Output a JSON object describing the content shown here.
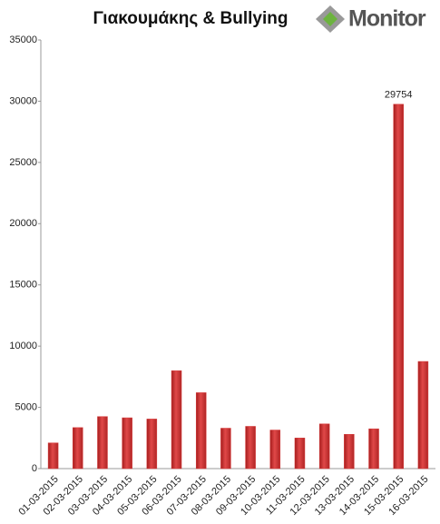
{
  "logo": "Monitor",
  "chart_data": {
    "type": "bar",
    "title": "Γιακουμάκης & Bullying",
    "categories": [
      "01-03-2015",
      "02-03-2015",
      "03-03-2015",
      "04-03-2015",
      "05-03-2015",
      "06-03-2015",
      "07-03-2015",
      "08-03-2015",
      "09-03-2015",
      "10-03-2015",
      "11-03-2015",
      "12-03-2015",
      "13-03-2015",
      "14-03-2015",
      "15-03-2015",
      "16-03-2015"
    ],
    "values": [
      2100,
      3350,
      4250,
      4150,
      4050,
      8000,
      6200,
      3300,
      3450,
      3150,
      2500,
      3650,
      2800,
      3250,
      29754,
      8750
    ],
    "value_labels": [
      null,
      null,
      null,
      null,
      null,
      null,
      null,
      null,
      null,
      null,
      null,
      null,
      null,
      null,
      "29754",
      null
    ],
    "color": "#d93a3a",
    "ylim": [
      0,
      35000
    ],
    "yticks": [
      0,
      5000,
      10000,
      15000,
      20000,
      25000,
      30000,
      35000
    ],
    "grid": false
  }
}
